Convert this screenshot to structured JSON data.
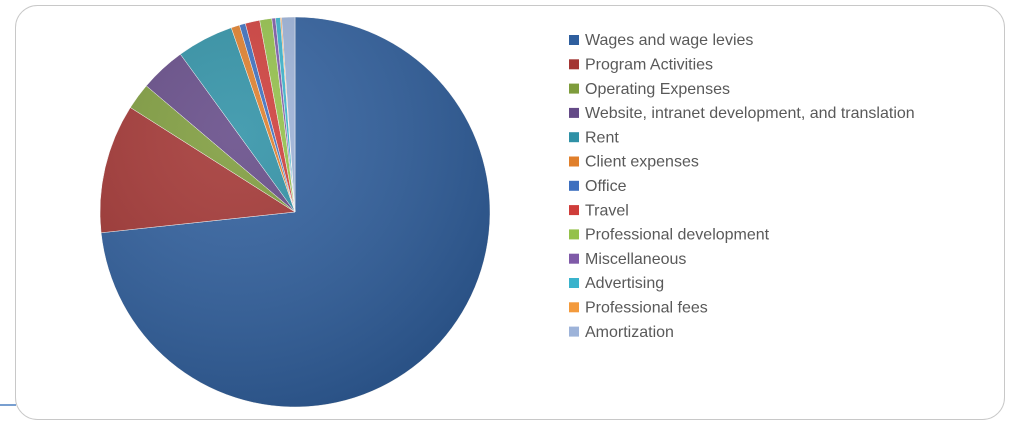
{
  "chart_data": {
    "type": "pie",
    "categories": [
      "Wages and wage levies",
      "Program Activities",
      "Operating Expenses",
      "Website, intranet development, and translation",
      "Rent",
      "Client expenses",
      "Office",
      "Travel",
      "Professional development",
      "Miscellaneous",
      "Advertising",
      "Professional fees",
      "Amortization"
    ],
    "values": [
      73.3,
      10.7,
      2.2,
      3.8,
      4.7,
      0.7,
      0.5,
      1.2,
      1.0,
      0.3,
      0.4,
      0.1,
      1.1
    ],
    "colors": [
      "#2f5f9e",
      "#a33533",
      "#7e9c3c",
      "#644a87",
      "#2f91a6",
      "#e07f2b",
      "#3d6fbf",
      "#cf3d3a",
      "#94c14a",
      "#7f5aa8",
      "#3ab3cc",
      "#f39a3c",
      "#9db3d9"
    ],
    "legend": "right"
  }
}
